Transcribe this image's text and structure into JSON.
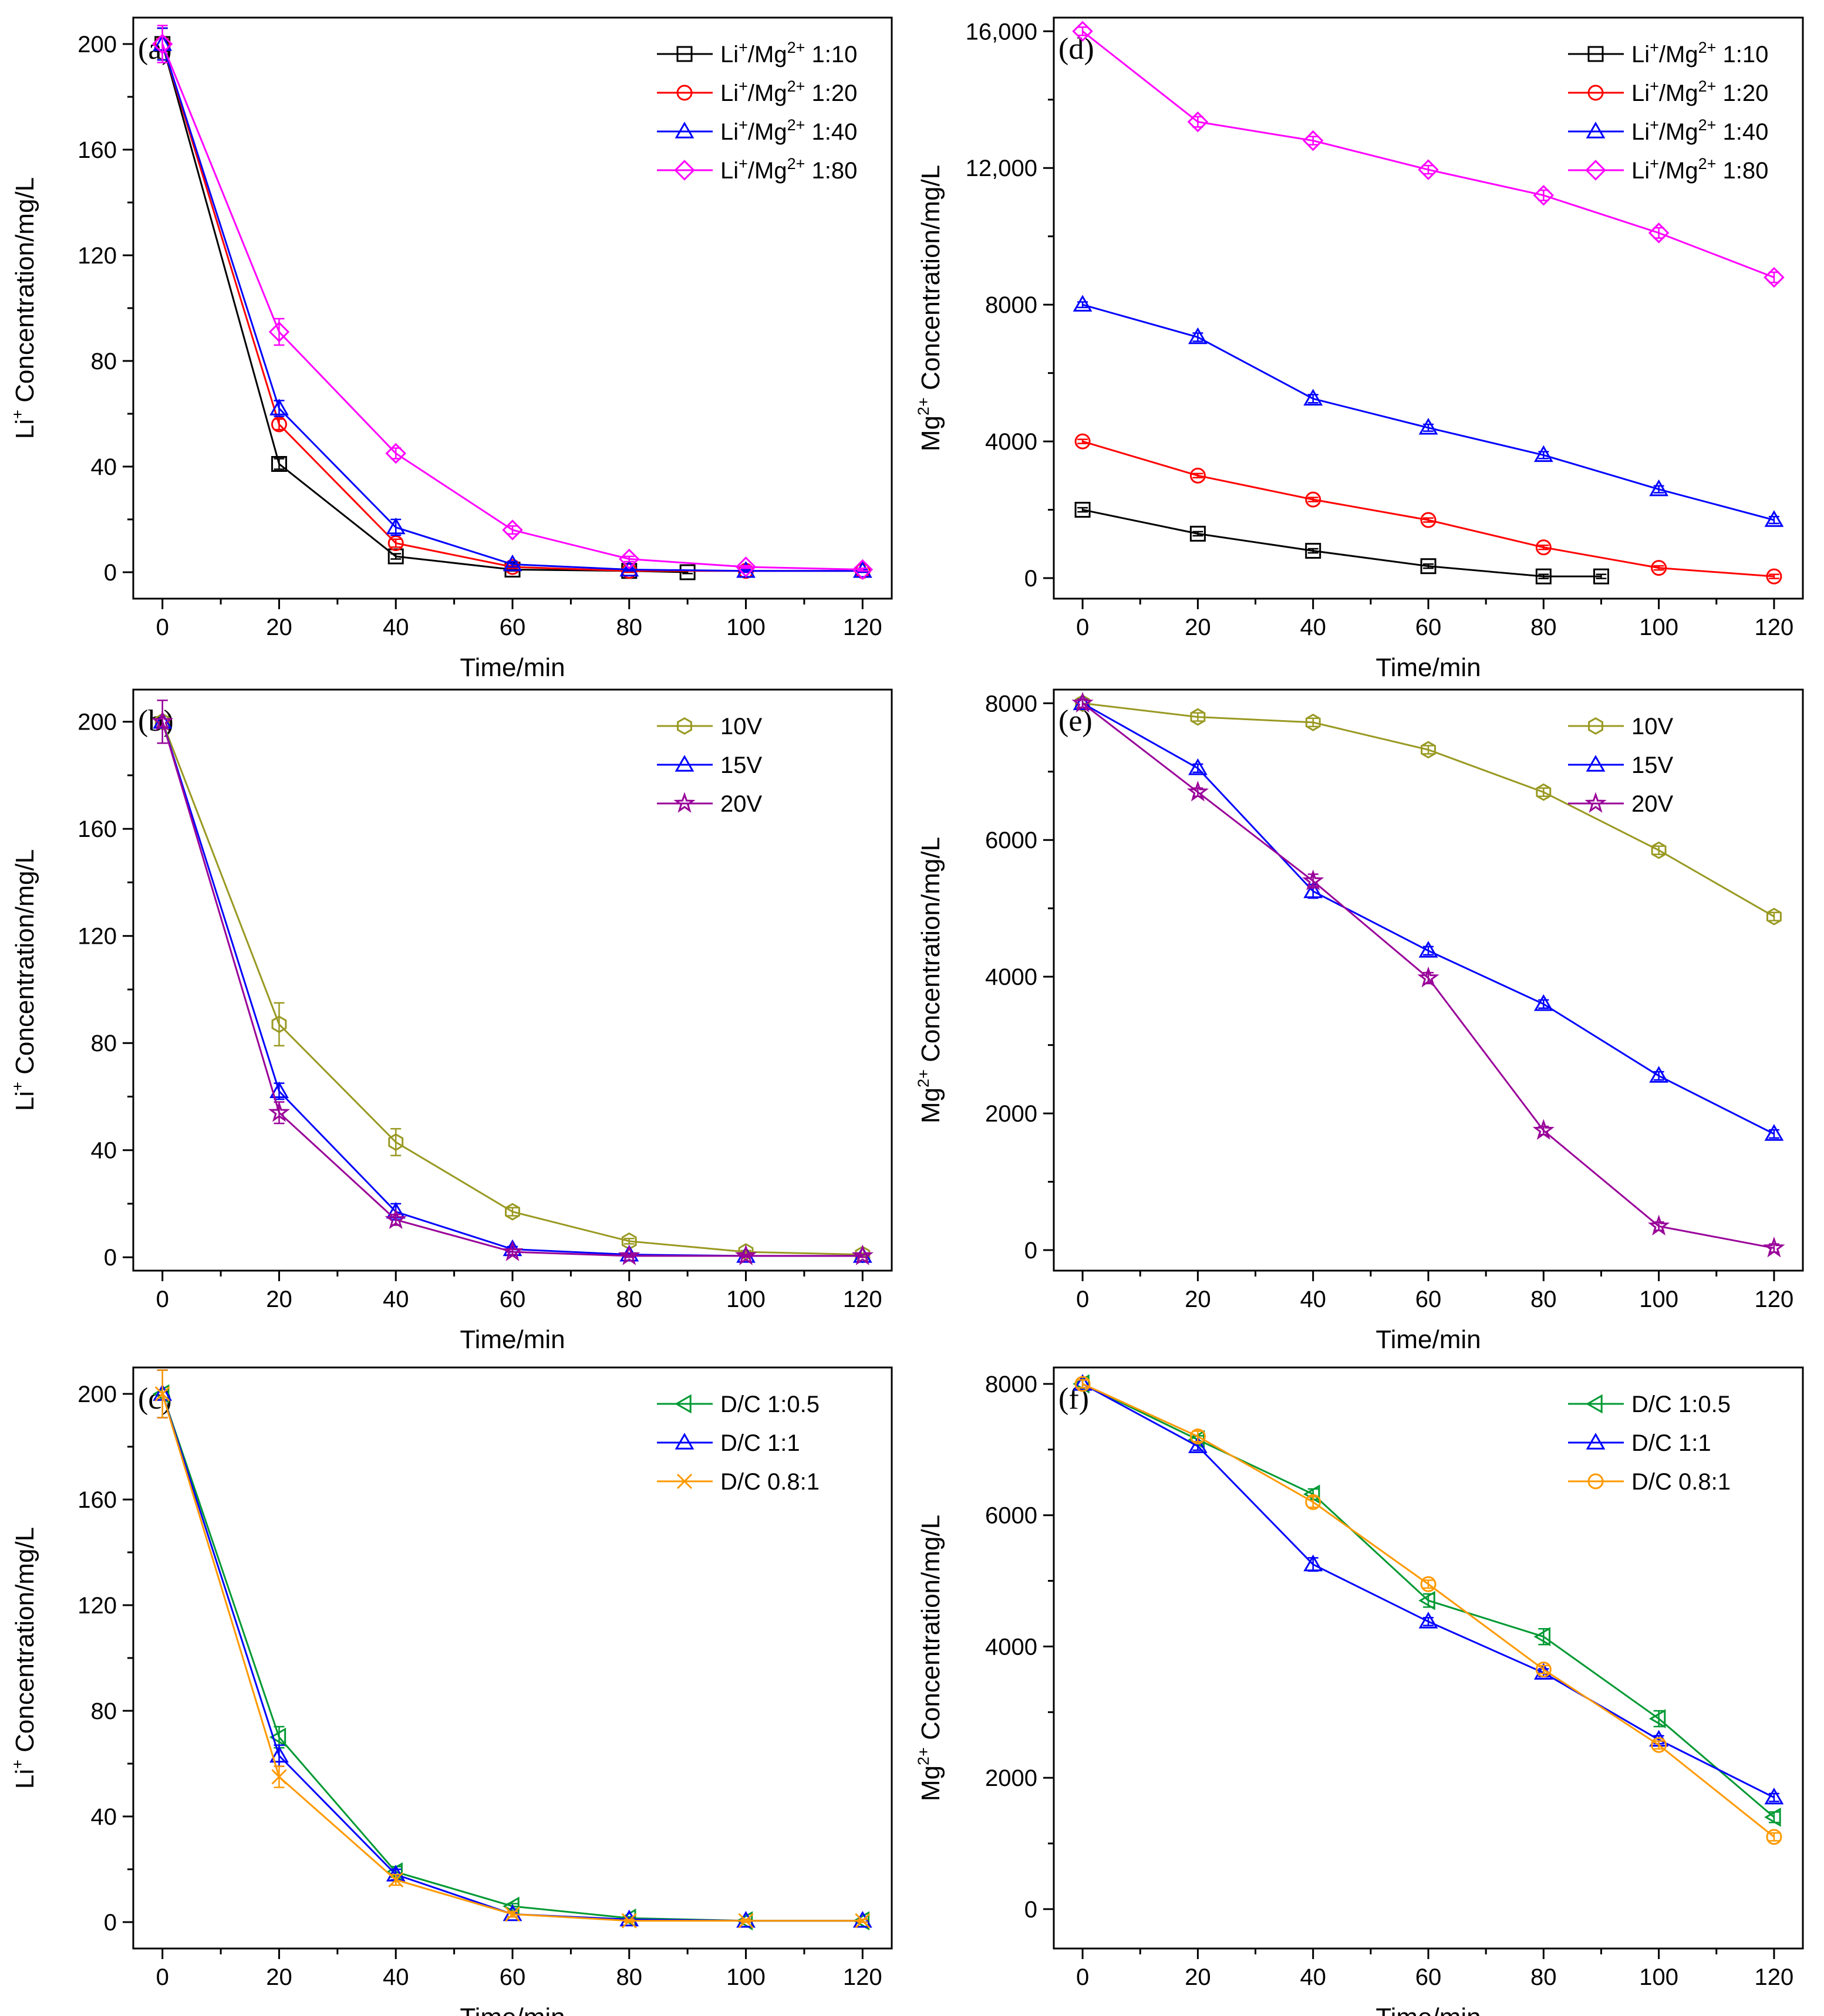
{
  "figure": {
    "description_free": true
  },
  "chart_data": [
    {
      "id": "a",
      "panel_label": "(a)",
      "type": "line",
      "xlabel": "Time/min",
      "ylabel": {
        "base": "Li",
        "sup": "+",
        "rest": " Concentration/mg/L"
      },
      "xlim": [
        -5,
        125
      ],
      "ylim": [
        -10,
        210
      ],
      "xticks": [
        "0",
        "20",
        "40",
        "60",
        "80",
        "100",
        "120"
      ],
      "xtick_values": [
        0,
        20,
        40,
        60,
        80,
        100,
        120
      ],
      "yticks": [
        "0",
        "40",
        "80",
        "120",
        "160",
        "200"
      ],
      "ytick_values": [
        0,
        40,
        80,
        120,
        160,
        200
      ],
      "legend_position": "top-right",
      "series": [
        {
          "label": "Li+/Mg2+ 1:10",
          "leg": [
            "Li",
            "+",
            "/Mg",
            "2+",
            " 1:10"
          ],
          "color": "#000000",
          "marker": "square",
          "x": [
            0,
            20,
            40,
            60,
            80,
            90
          ],
          "y": [
            200,
            41,
            6,
            1,
            0.5,
            0
          ],
          "err": [
            6,
            2,
            1,
            0.5,
            0.5,
            0.5
          ]
        },
        {
          "label": "Li+/Mg2+ 1:20",
          "leg": [
            "Li",
            "+",
            "/Mg",
            "2+",
            " 1:20"
          ],
          "color": "#ff0000",
          "marker": "circle",
          "x": [
            0,
            20,
            40,
            60,
            80,
            100,
            120
          ],
          "y": [
            200,
            56,
            11,
            2,
            0.5,
            0.5,
            0.5
          ],
          "err": [
            6,
            2,
            1.5,
            0.5,
            0.5,
            0.5,
            0.5
          ]
        },
        {
          "label": "Li+/Mg2+ 1:40",
          "leg": [
            "Li",
            "+",
            "/Mg",
            "2+",
            " 1:40"
          ],
          "color": "#0000ff",
          "marker": "triangle",
          "x": [
            0,
            20,
            40,
            60,
            80,
            100,
            120
          ],
          "y": [
            200,
            62,
            17,
            3,
            1,
            0.5,
            0.5
          ],
          "err": [
            6,
            3,
            3,
            1,
            0.5,
            0.5,
            0.5
          ]
        },
        {
          "label": "Li+/Mg2+ 1:80",
          "leg": [
            "Li",
            "+",
            "/Mg",
            "2+",
            " 1:80"
          ],
          "color": "#ff00ff",
          "marker": "diamond",
          "x": [
            0,
            20,
            40,
            60,
            80,
            100,
            120
          ],
          "y": [
            200,
            91,
            45,
            16,
            5,
            2,
            1
          ],
          "err": [
            7,
            5,
            2,
            1.5,
            1,
            0.5,
            0.5
          ]
        }
      ]
    },
    {
      "id": "d",
      "panel_label": "(d)",
      "type": "line",
      "xlabel": "Time/min",
      "ylabel": {
        "base": "Mg",
        "sup": "2+",
        "rest": " Concentration/mg/L"
      },
      "xlim": [
        -5,
        125
      ],
      "ylim": [
        -600,
        16400
      ],
      "xticks": [
        "0",
        "20",
        "40",
        "60",
        "80",
        "100",
        "120"
      ],
      "xtick_values": [
        0,
        20,
        40,
        60,
        80,
        100,
        120
      ],
      "yticks": [
        "0",
        "4000",
        "8000",
        "12,000",
        "16,000"
      ],
      "ytick_values": [
        0,
        4000,
        8000,
        12000,
        16000
      ],
      "legend_position": "top-right",
      "series": [
        {
          "label": "Li+/Mg2+ 1:10",
          "leg": [
            "Li",
            "+",
            "/Mg",
            "2+",
            " 1:10"
          ],
          "color": "#000000",
          "marker": "square",
          "x": [
            0,
            20,
            40,
            60,
            80,
            90
          ],
          "y": [
            2000,
            1300,
            800,
            350,
            50,
            50
          ],
          "err": [
            60,
            60,
            60,
            60,
            60,
            60
          ]
        },
        {
          "label": "Li+/Mg2+ 1:20",
          "leg": [
            "Li",
            "+",
            "/Mg",
            "2+",
            " 1:20"
          ],
          "color": "#ff0000",
          "marker": "circle",
          "x": [
            0,
            20,
            40,
            60,
            80,
            100,
            120
          ],
          "y": [
            4000,
            3000,
            2300,
            1700,
            900,
            300,
            50
          ],
          "err": [
            60,
            60,
            60,
            60,
            60,
            60,
            60
          ]
        },
        {
          "label": "Li+/Mg2+ 1:40",
          "leg": [
            "Li",
            "+",
            "/Mg",
            "2+",
            " 1:40"
          ],
          "color": "#0000ff",
          "marker": "triangle",
          "x": [
            0,
            20,
            40,
            60,
            80,
            100,
            120
          ],
          "y": [
            8000,
            7050,
            5250,
            4400,
            3600,
            2600,
            1700
          ],
          "err": [
            80,
            120,
            120,
            100,
            100,
            100,
            100
          ]
        },
        {
          "label": "Li+/Mg2+ 1:80",
          "leg": [
            "Li",
            "+",
            "/Mg",
            "2+",
            " 1:80"
          ],
          "color": "#ff00ff",
          "marker": "diamond",
          "x": [
            0,
            20,
            40,
            60,
            80,
            100,
            120
          ],
          "y": [
            16000,
            13350,
            12800,
            11950,
            11200,
            10100,
            8800
          ],
          "err": [
            120,
            150,
            120,
            120,
            150,
            150,
            150
          ]
        }
      ]
    },
    {
      "id": "b",
      "panel_label": "(b)",
      "type": "line",
      "xlabel": "Time/min",
      "ylabel": {
        "base": "Li",
        "sup": "+",
        "rest": " Concentration/mg/L"
      },
      "xlim": [
        -5,
        125
      ],
      "ylim": [
        -5,
        212
      ],
      "xticks": [
        "0",
        "20",
        "40",
        "60",
        "80",
        "100",
        "120"
      ],
      "xtick_values": [
        0,
        20,
        40,
        60,
        80,
        100,
        120
      ],
      "yticks": [
        "0",
        "40",
        "80",
        "120",
        "160",
        "200"
      ],
      "ytick_values": [
        0,
        40,
        80,
        120,
        160,
        200
      ],
      "legend_position": "top-right",
      "series": [
        {
          "label": "10V",
          "leg": [
            "10V"
          ],
          "color": "#999922",
          "marker": "hexagon",
          "x": [
            0,
            20,
            40,
            60,
            80,
            100,
            120
          ],
          "y": [
            200,
            87,
            43,
            17,
            6,
            2,
            1
          ],
          "err": [
            8,
            8,
            5,
            1.5,
            1,
            0.5,
            0.5
          ]
        },
        {
          "label": "15V",
          "leg": [
            "15V"
          ],
          "color": "#0000ff",
          "marker": "triangle",
          "x": [
            0,
            20,
            40,
            60,
            80,
            100,
            120
          ],
          "y": [
            200,
            62,
            17,
            3,
            1,
            0.5,
            0.5
          ],
          "err": [
            8,
            3,
            3,
            1,
            0.5,
            0.5,
            0.5
          ]
        },
        {
          "label": "20V",
          "leg": [
            "20V"
          ],
          "color": "#990099",
          "marker": "star",
          "x": [
            0,
            20,
            40,
            60,
            80,
            100,
            120
          ],
          "y": [
            200,
            54,
            14,
            2,
            0.5,
            0.5,
            0.5
          ],
          "err": [
            8,
            4,
            2,
            1,
            0.5,
            0.5,
            0.5
          ]
        }
      ]
    },
    {
      "id": "e",
      "panel_label": "(e)",
      "type": "line",
      "xlabel": "Time/min",
      "ylabel": {
        "base": "Mg",
        "sup": "2+",
        "rest": " Concentration/mg/L"
      },
      "xlim": [
        -5,
        125
      ],
      "ylim": [
        -300,
        8200
      ],
      "xticks": [
        "0",
        "20",
        "40",
        "60",
        "80",
        "100",
        "120"
      ],
      "xtick_values": [
        0,
        20,
        40,
        60,
        80,
        100,
        120
      ],
      "yticks": [
        "0",
        "2000",
        "4000",
        "6000",
        "8000"
      ],
      "ytick_values": [
        0,
        2000,
        4000,
        6000,
        8000
      ],
      "legend_position": "top-right",
      "series": [
        {
          "label": "10V",
          "leg": [
            "10V"
          ],
          "color": "#999922",
          "marker": "hexagon",
          "x": [
            0,
            20,
            40,
            60,
            80,
            100,
            120
          ],
          "y": [
            8000,
            7800,
            7720,
            7320,
            6700,
            5850,
            4880
          ],
          "err": [
            60,
            60,
            60,
            60,
            60,
            60,
            60
          ]
        },
        {
          "label": "15V",
          "leg": [
            "15V"
          ],
          "color": "#0000ff",
          "marker": "triangle",
          "x": [
            0,
            20,
            40,
            60,
            80,
            100,
            120
          ],
          "y": [
            8000,
            7050,
            5250,
            4380,
            3600,
            2550,
            1700
          ],
          "err": [
            60,
            60,
            100,
            60,
            60,
            60,
            60
          ]
        },
        {
          "label": "20V",
          "leg": [
            "20V"
          ],
          "color": "#990099",
          "marker": "star",
          "x": [
            0,
            20,
            40,
            60,
            80,
            100,
            120
          ],
          "y": [
            8000,
            6700,
            5400,
            3980,
            1750,
            350,
            30
          ],
          "err": [
            60,
            60,
            100,
            80,
            60,
            60,
            60
          ]
        }
      ]
    },
    {
      "id": "c",
      "panel_label": "(c)",
      "type": "line",
      "xlabel": "Time/min",
      "ylabel": {
        "base": "Li",
        "sup": "+",
        "rest": " Concentration/mg/L"
      },
      "xlim": [
        -5,
        125
      ],
      "ylim": [
        -10,
        210
      ],
      "xticks": [
        "0",
        "20",
        "40",
        "60",
        "80",
        "100",
        "120"
      ],
      "xtick_values": [
        0,
        20,
        40,
        60,
        80,
        100,
        120
      ],
      "yticks": [
        "0",
        "40",
        "80",
        "120",
        "160",
        "200"
      ],
      "ytick_values": [
        0,
        40,
        80,
        120,
        160,
        200
      ],
      "legend_position": "top-right",
      "series": [
        {
          "label": "D/C 1:0.5",
          "leg": [
            "D/C 1:0.5"
          ],
          "color": "#009933",
          "marker": "triangle-left",
          "x": [
            0,
            20,
            40,
            60,
            80,
            100,
            120
          ],
          "y": [
            200,
            70,
            19,
            6,
            1.5,
            0.5,
            0.5
          ],
          "err": [
            9,
            4,
            2,
            1,
            0.5,
            0.5,
            0.5
          ]
        },
        {
          "label": "D/C 1:1",
          "leg": [
            "D/C 1:1"
          ],
          "color": "#0000ff",
          "marker": "triangle",
          "x": [
            0,
            20,
            40,
            60,
            80,
            100,
            120
          ],
          "y": [
            200,
            63,
            18,
            3,
            1,
            0.5,
            0.5
          ],
          "err": [
            9,
            4,
            2,
            1,
            0.5,
            0.5,
            0.5
          ]
        },
        {
          "label": "D/C 0.8:1",
          "leg": [
            "D/C 0.8:1"
          ],
          "color": "#ff9900",
          "marker": "x",
          "x": [
            0,
            20,
            40,
            60,
            80,
            100,
            120
          ],
          "y": [
            200,
            55,
            16,
            3,
            0.5,
            0.5,
            0.5
          ],
          "err": [
            9,
            4,
            2,
            1,
            0.5,
            0.5,
            0.5
          ]
        }
      ]
    },
    {
      "id": "f",
      "panel_label": "(f)",
      "type": "line",
      "xlabel": "Time/min",
      "ylabel": {
        "base": "Mg",
        "sup": "2+",
        "rest": " Concentration/mg/L"
      },
      "xlim": [
        -5,
        125
      ],
      "ylim": [
        -600,
        8250
      ],
      "xticks": [
        "0",
        "20",
        "40",
        "60",
        "80",
        "100",
        "120"
      ],
      "xtick_values": [
        0,
        20,
        40,
        60,
        80,
        100,
        120
      ],
      "yticks": [
        "0",
        "2000",
        "4000",
        "6000",
        "8000"
      ],
      "ytick_values": [
        0,
        2000,
        4000,
        6000,
        8000
      ],
      "legend_position": "top-right",
      "series": [
        {
          "label": "D/C 1:0.5",
          "leg": [
            "D/C 1:0.5"
          ],
          "color": "#009933",
          "marker": "triangle-left",
          "x": [
            0,
            20,
            40,
            60,
            80,
            100,
            120
          ],
          "y": [
            8000,
            7150,
            6320,
            4700,
            4150,
            2900,
            1400
          ],
          "err": [
            60,
            60,
            80,
            100,
            120,
            120,
            80
          ]
        },
        {
          "label": "D/C 1:1",
          "leg": [
            "D/C 1:1"
          ],
          "color": "#0000ff",
          "marker": "triangle",
          "x": [
            0,
            20,
            40,
            60,
            80,
            100,
            120
          ],
          "y": [
            8000,
            7050,
            5250,
            4380,
            3600,
            2580,
            1700
          ],
          "err": [
            60,
            60,
            100,
            60,
            60,
            60,
            60
          ]
        },
        {
          "label": "D/C 0.8:1",
          "leg": [
            "D/C 0.8:1"
          ],
          "color": "#ff9900",
          "marker": "circle",
          "x": [
            0,
            20,
            40,
            60,
            80,
            100,
            120
          ],
          "y": [
            8000,
            7200,
            6200,
            4950,
            3650,
            2500,
            1100
          ],
          "err": [
            60,
            80,
            80,
            60,
            60,
            60,
            60
          ]
        }
      ]
    }
  ]
}
